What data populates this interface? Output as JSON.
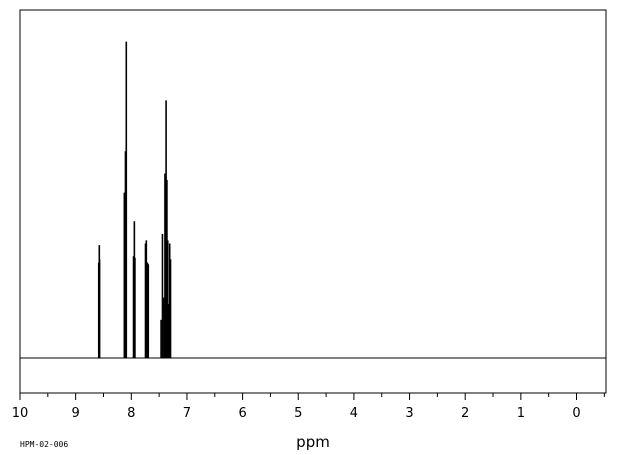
{
  "chart_data": {
    "type": "line",
    "xlabel": "ppm",
    "xlim": [
      10,
      -0.5
    ],
    "x_ticks": [
      "10",
      "9",
      "8",
      "7",
      "6",
      "5",
      "4",
      "3",
      "2",
      "1",
      "0"
    ],
    "y_axis_visible": false,
    "grid": false,
    "sample_code": "HPM-02-006",
    "peaks": [
      {
        "ppm": 8.585,
        "height": 0.3
      },
      {
        "ppm": 8.575,
        "height": 0.355
      },
      {
        "ppm": 8.57,
        "height": 0.31
      },
      {
        "ppm": 8.125,
        "height": 0.52
      },
      {
        "ppm": 8.105,
        "height": 0.65
      },
      {
        "ppm": 8.09,
        "height": 0.995
      },
      {
        "ppm": 7.96,
        "height": 0.32
      },
      {
        "ppm": 7.945,
        "height": 0.43
      },
      {
        "ppm": 7.935,
        "height": 0.315
      },
      {
        "ppm": 7.745,
        "height": 0.36
      },
      {
        "ppm": 7.73,
        "height": 0.37
      },
      {
        "ppm": 7.71,
        "height": 0.3
      },
      {
        "ppm": 7.695,
        "height": 0.295
      },
      {
        "ppm": 7.465,
        "height": 0.12
      },
      {
        "ppm": 7.44,
        "height": 0.39
      },
      {
        "ppm": 7.415,
        "height": 0.19
      },
      {
        "ppm": 7.395,
        "height": 0.58
      },
      {
        "ppm": 7.375,
        "height": 0.81
      },
      {
        "ppm": 7.36,
        "height": 0.56
      },
      {
        "ppm": 7.345,
        "height": 0.37
      },
      {
        "ppm": 7.33,
        "height": 0.17
      },
      {
        "ppm": 7.31,
        "height": 0.36
      },
      {
        "ppm": 7.295,
        "height": 0.31
      }
    ]
  }
}
